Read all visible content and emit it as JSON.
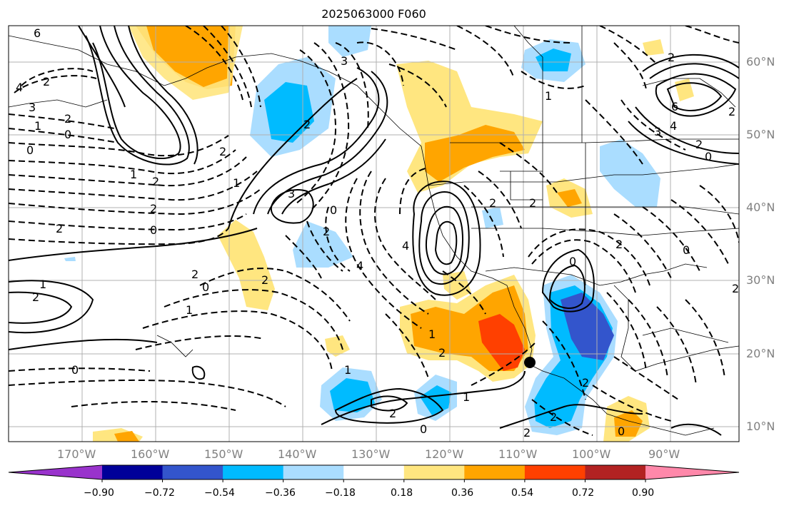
{
  "title": "2025063000 F060",
  "lon_ticks": [
    "170°W",
    "160°W",
    "150°W",
    "140°W",
    "130°W",
    "120°W",
    "110°W",
    "100°W",
    "90°W"
  ],
  "lat_ticks": [
    "60°N",
    "50°N",
    "40°N",
    "30°N",
    "20°N",
    "10°N"
  ],
  "colorbar": {
    "labels": [
      "−0.90",
      "−0.72",
      "−0.54",
      "−0.36",
      "−0.18",
      "0.18",
      "0.36",
      "0.54",
      "0.72",
      "0.90"
    ],
    "colors": [
      "#9933cc",
      "#000099",
      "#3355cc",
      "#00bbff",
      "#aaddff",
      "#ffffff",
      "#ffe680",
      "#ffa500",
      "#ff4000",
      "#b22222",
      "#ff88aa"
    ]
  },
  "contour_labels": [
    "6",
    "4",
    "3",
    "2",
    "1",
    "0",
    "0",
    "2",
    "2",
    "1",
    "2",
    "2",
    "0",
    "2",
    "1",
    "2",
    "1",
    "2",
    "3",
    "2",
    "0",
    "4",
    "2",
    "1",
    "0",
    "0",
    "2",
    "1",
    "2",
    "2",
    "1",
    "2",
    "0",
    "4",
    "2",
    "0",
    "3",
    "2",
    "2",
    "1",
    "2",
    "2",
    "2",
    "6",
    "4",
    "3",
    "2",
    "0",
    "2",
    "2",
    "0",
    "1",
    "0"
  ],
  "marker": "black-dot"
}
